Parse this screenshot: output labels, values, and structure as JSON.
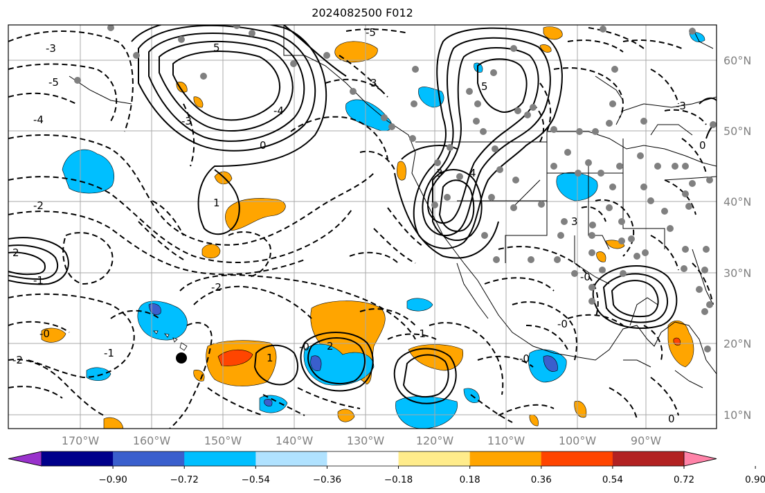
{
  "title": "2024082500 F012",
  "lon_labels": [
    "170°W",
    "160°W",
    "150°W",
    "140°W",
    "130°W",
    "120°W",
    "110°W",
    "100°W",
    "90°W"
  ],
  "lat_labels": [
    "60°N",
    "50°N",
    "40°N",
    "30°N",
    "20°N",
    "10°N"
  ],
  "colorbar": {
    "colors": [
      "#9932cc",
      "#00008b",
      "#3a5fcd",
      "#00bfff",
      "#b0e2ff",
      "#ffffff",
      "#ffec8b",
      "#ffa500",
      "#ff4500",
      "#b22222",
      "#ff83a8"
    ],
    "tick_labels": [
      "−0.90",
      "−0.72",
      "−0.54",
      "−0.36",
      "−0.18",
      "0.18",
      "0.36",
      "0.54",
      "0.72",
      "0.90"
    ]
  },
  "contour_labels": {
    "c1": "-3",
    "c2": "-5",
    "c3": "5",
    "c4": "-4",
    "c5": "-2",
    "c6": "1",
    "c7": "0",
    "c8": "2",
    "c9": "-1",
    "c10": "-2",
    "c11": "-0",
    "c12": "-3",
    "c13": "-5",
    "c14": "-4",
    "c15": "3",
    "c16": "-1",
    "c17": "1",
    "c18": "2",
    "c19": "-0",
    "c20": "-2",
    "c21": "3",
    "c22": "5",
    "c23": "4",
    "c24": "-0",
    "c25": "3",
    "c26": "-3",
    "c27": "0",
    "c28": "-0",
    "c29": "-1",
    "c30": "-0",
    "c31": "0"
  }
}
